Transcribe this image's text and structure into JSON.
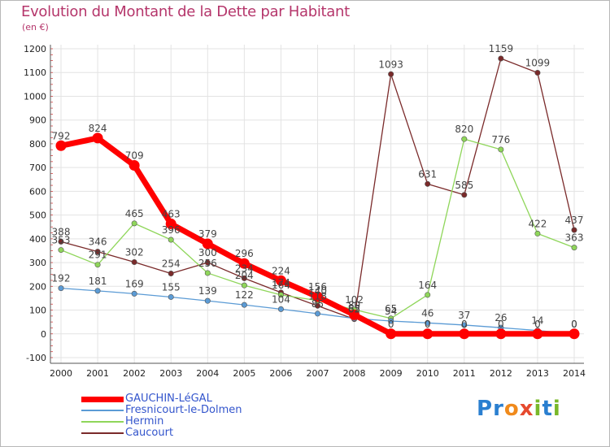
{
  "title": "Evolution du Montant de la Dette par Habitant",
  "unit_label": "(en €)",
  "logo": {
    "text": "Proxiti",
    "letters": [
      "P",
      "r",
      "o",
      "x",
      "i",
      "t",
      "i"
    ],
    "colors": [
      "#2a7fd0",
      "#2a7fd0",
      "#f08a1c",
      "#e64a2e",
      "#79b829",
      "#2a7fd0",
      "#79b829"
    ]
  },
  "chart_data": {
    "type": "line",
    "title": "Evolution du Montant de la Dette par Habitant",
    "ylabel": "(en €)",
    "x": [
      "2000",
      "2001",
      "2002",
      "2003",
      "2004",
      "2005",
      "2006",
      "2007",
      "2008",
      "2009",
      "2010",
      "2011",
      "2012",
      "2013",
      "2014"
    ],
    "ylim": [
      -100,
      1200
    ],
    "yticks": [
      -100,
      0,
      100,
      200,
      300,
      400,
      500,
      600,
      700,
      800,
      900,
      1000,
      1100,
      1200
    ],
    "grid": true,
    "legend_position": "bottom-left",
    "series": [
      {
        "name": "GAUCHIN-LéGAL",
        "color": "#ff0000",
        "values": [
          792,
          824,
          709,
          463,
          379,
          296,
          224,
          156,
          80,
          0,
          0,
          0,
          0,
          0,
          0
        ]
      },
      {
        "name": "Fresnicourt-le-Dolmen",
        "color": "#5b9bd5",
        "values": [
          192,
          181,
          169,
          155,
          139,
          122,
          104,
          85,
          65,
          54,
          46,
          37,
          26,
          14,
          0
        ]
      },
      {
        "name": "Hermin",
        "color": "#8fd65a",
        "values": [
          353,
          291,
          465,
          396,
          256,
          204,
          164,
          140,
          102,
          65,
          164,
          820,
          776,
          422,
          363
        ]
      },
      {
        "name": "Caucourt",
        "color": "#7a2a2a",
        "values": [
          388,
          346,
          302,
          254,
          300,
          234,
          174,
          118,
          62,
          1093,
          631,
          585,
          1159,
          1099,
          437
        ]
      }
    ]
  }
}
